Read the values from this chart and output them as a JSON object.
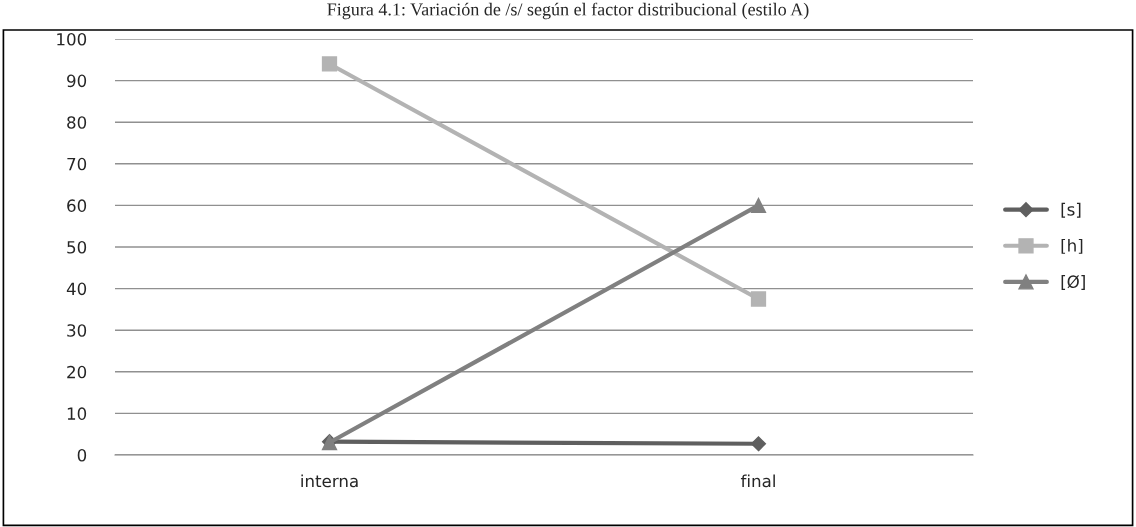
{
  "chart_data": {
    "type": "line",
    "title": "Figura 4.1: Variación de /s/ según el factor distribucional (estilo A)",
    "categories": [
      "interna",
      "final"
    ],
    "series": [
      {
        "name": "[s]",
        "color": "#5f5f5f",
        "values": [
          3.2,
          2.7
        ],
        "marker": "diamond"
      },
      {
        "name": "[h]",
        "color": "#b3b3b3",
        "values": [
          94,
          37.5
        ],
        "marker": "square"
      },
      {
        "name": "[Ø]",
        "color": "#808080",
        "values": [
          3,
          60
        ],
        "marker": "triangle"
      }
    ],
    "ylim": [
      0,
      100
    ],
    "yticks": [
      0,
      10,
      20,
      30,
      40,
      50,
      60,
      70,
      80,
      90,
      100
    ],
    "grid": "y",
    "legend": "right",
    "line_style": "solid"
  }
}
